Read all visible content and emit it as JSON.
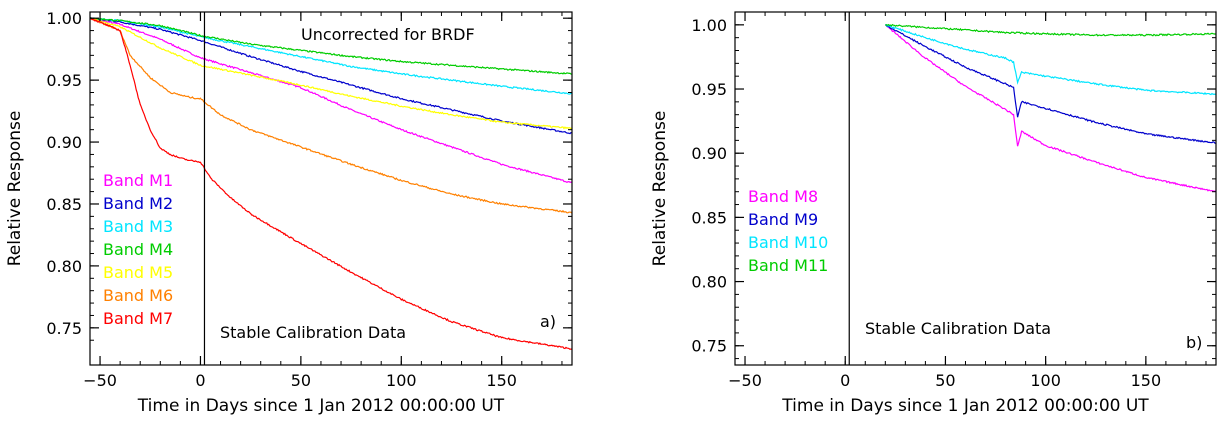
{
  "chart_data": [
    {
      "type": "line",
      "panel_label": "a)",
      "xlabel": "Time in Days since 1 Jan 2012 00:00:00 UT",
      "ylabel": "Relative Response",
      "xlim": [
        -55,
        185
      ],
      "ylim": [
        0.72,
        1.005
      ],
      "xticks": [
        -50,
        0,
        50,
        100,
        150
      ],
      "yticks": [
        0.75,
        0.8,
        0.85,
        0.9,
        0.95,
        1.0
      ],
      "ytick_labels": [
        "0.75",
        "0.80",
        "0.85",
        "0.90",
        "0.95",
        "1.00"
      ],
      "vline_x": 2,
      "annotations": [
        "Uncorrected for BRDF",
        "Stable Calibration Data"
      ],
      "legend_placement": "left",
      "series": [
        {
          "name": "Band  M1",
          "color": "#ff00ff",
          "x": [
            -55,
            -40,
            -20,
            0,
            25,
            50,
            75,
            100,
            125,
            150,
            185
          ],
          "y": [
            1.0,
            0.995,
            0.983,
            0.968,
            0.956,
            0.944,
            0.926,
            0.91,
            0.896,
            0.882,
            0.867
          ]
        },
        {
          "name": "Band  M2",
          "color": "#0000cc",
          "x": [
            -55,
            -40,
            -20,
            0,
            25,
            50,
            75,
            100,
            125,
            150,
            185
          ],
          "y": [
            1.0,
            0.997,
            0.991,
            0.982,
            0.969,
            0.957,
            0.946,
            0.935,
            0.926,
            0.917,
            0.907
          ]
        },
        {
          "name": "Band  M3",
          "color": "#00e5ff",
          "x": [
            -55,
            -40,
            -20,
            0,
            25,
            50,
            75,
            100,
            125,
            150,
            185
          ],
          "y": [
            1.0,
            0.998,
            0.993,
            0.985,
            0.977,
            0.969,
            0.961,
            0.955,
            0.95,
            0.945,
            0.939
          ]
        },
        {
          "name": "Band  M4",
          "color": "#00cc00",
          "x": [
            -55,
            -40,
            -20,
            0,
            25,
            50,
            75,
            100,
            125,
            150,
            185
          ],
          "y": [
            1.0,
            0.998,
            0.994,
            0.986,
            0.979,
            0.974,
            0.969,
            0.965,
            0.962,
            0.959,
            0.955
          ]
        },
        {
          "name": "Band  M5",
          "color": "#ffff00",
          "x": [
            -55,
            -40,
            -20,
            0,
            25,
            50,
            75,
            100,
            125,
            150,
            185
          ],
          "y": [
            1.0,
            0.993,
            0.976,
            0.962,
            0.954,
            0.946,
            0.937,
            0.929,
            0.922,
            0.916,
            0.911
          ]
        },
        {
          "name": "Band  M6",
          "color": "#ff8000",
          "x": [
            -55,
            -40,
            -35,
            -25,
            -15,
            -5,
            0,
            10,
            25,
            50,
            75,
            100,
            125,
            150,
            185
          ],
          "y": [
            1.0,
            0.99,
            0.97,
            0.952,
            0.94,
            0.936,
            0.935,
            0.922,
            0.91,
            0.896,
            0.882,
            0.869,
            0.858,
            0.85,
            0.843
          ]
        },
        {
          "name": "Band  M7",
          "color": "#ff0000",
          "x": [
            -55,
            -40,
            -35,
            -30,
            -25,
            -20,
            -15,
            -10,
            -5,
            0,
            5,
            15,
            25,
            50,
            75,
            100,
            125,
            150,
            185
          ],
          "y": [
            1.0,
            0.99,
            0.962,
            0.93,
            0.91,
            0.895,
            0.89,
            0.887,
            0.885,
            0.884,
            0.871,
            0.855,
            0.842,
            0.818,
            0.795,
            0.773,
            0.755,
            0.742,
            0.733
          ]
        }
      ]
    },
    {
      "type": "line",
      "panel_label": "b)",
      "xlabel": "Time in Days since 1 Jan 2012 00:00:00 UT",
      "ylabel": "Relative Response",
      "xlim": [
        -55,
        185
      ],
      "ylim": [
        0.735,
        1.01
      ],
      "xticks": [
        -50,
        0,
        50,
        100,
        150
      ],
      "yticks": [
        0.75,
        0.8,
        0.85,
        0.9,
        0.95,
        1.0
      ],
      "ytick_labels": [
        "0.75",
        "0.80",
        "0.85",
        "0.90",
        "0.95",
        "1.00"
      ],
      "vline_x": 2,
      "annotations": [
        "Stable Calibration Data"
      ],
      "legend_placement": "left",
      "series": [
        {
          "name": "Band  M8",
          "color": "#ff00ff",
          "x": [
            20,
            40,
            60,
            80,
            84,
            86,
            88,
            100,
            125,
            150,
            185
          ],
          "y": [
            1.0,
            0.974,
            0.952,
            0.934,
            0.93,
            0.905,
            0.917,
            0.906,
            0.893,
            0.881,
            0.87
          ]
        },
        {
          "name": "Band  M9",
          "color": "#0000cc",
          "x": [
            20,
            40,
            60,
            80,
            84,
            86,
            88,
            100,
            125,
            150,
            185
          ],
          "y": [
            1.0,
            0.983,
            0.967,
            0.954,
            0.951,
            0.928,
            0.94,
            0.935,
            0.924,
            0.915,
            0.908
          ]
        },
        {
          "name": "Band  M10",
          "color": "#00e5ff",
          "x": [
            20,
            40,
            60,
            80,
            84,
            86,
            88,
            100,
            125,
            150,
            185
          ],
          "y": [
            1.0,
            0.99,
            0.981,
            0.974,
            0.971,
            0.955,
            0.963,
            0.96,
            0.954,
            0.949,
            0.946
          ]
        },
        {
          "name": "Band  M11",
          "color": "#00cc00",
          "x": [
            20,
            40,
            60,
            80,
            100,
            125,
            150,
            185
          ],
          "y": [
            1.0,
            0.998,
            0.996,
            0.994,
            0.993,
            0.992,
            0.992,
            0.993
          ]
        }
      ]
    }
  ]
}
